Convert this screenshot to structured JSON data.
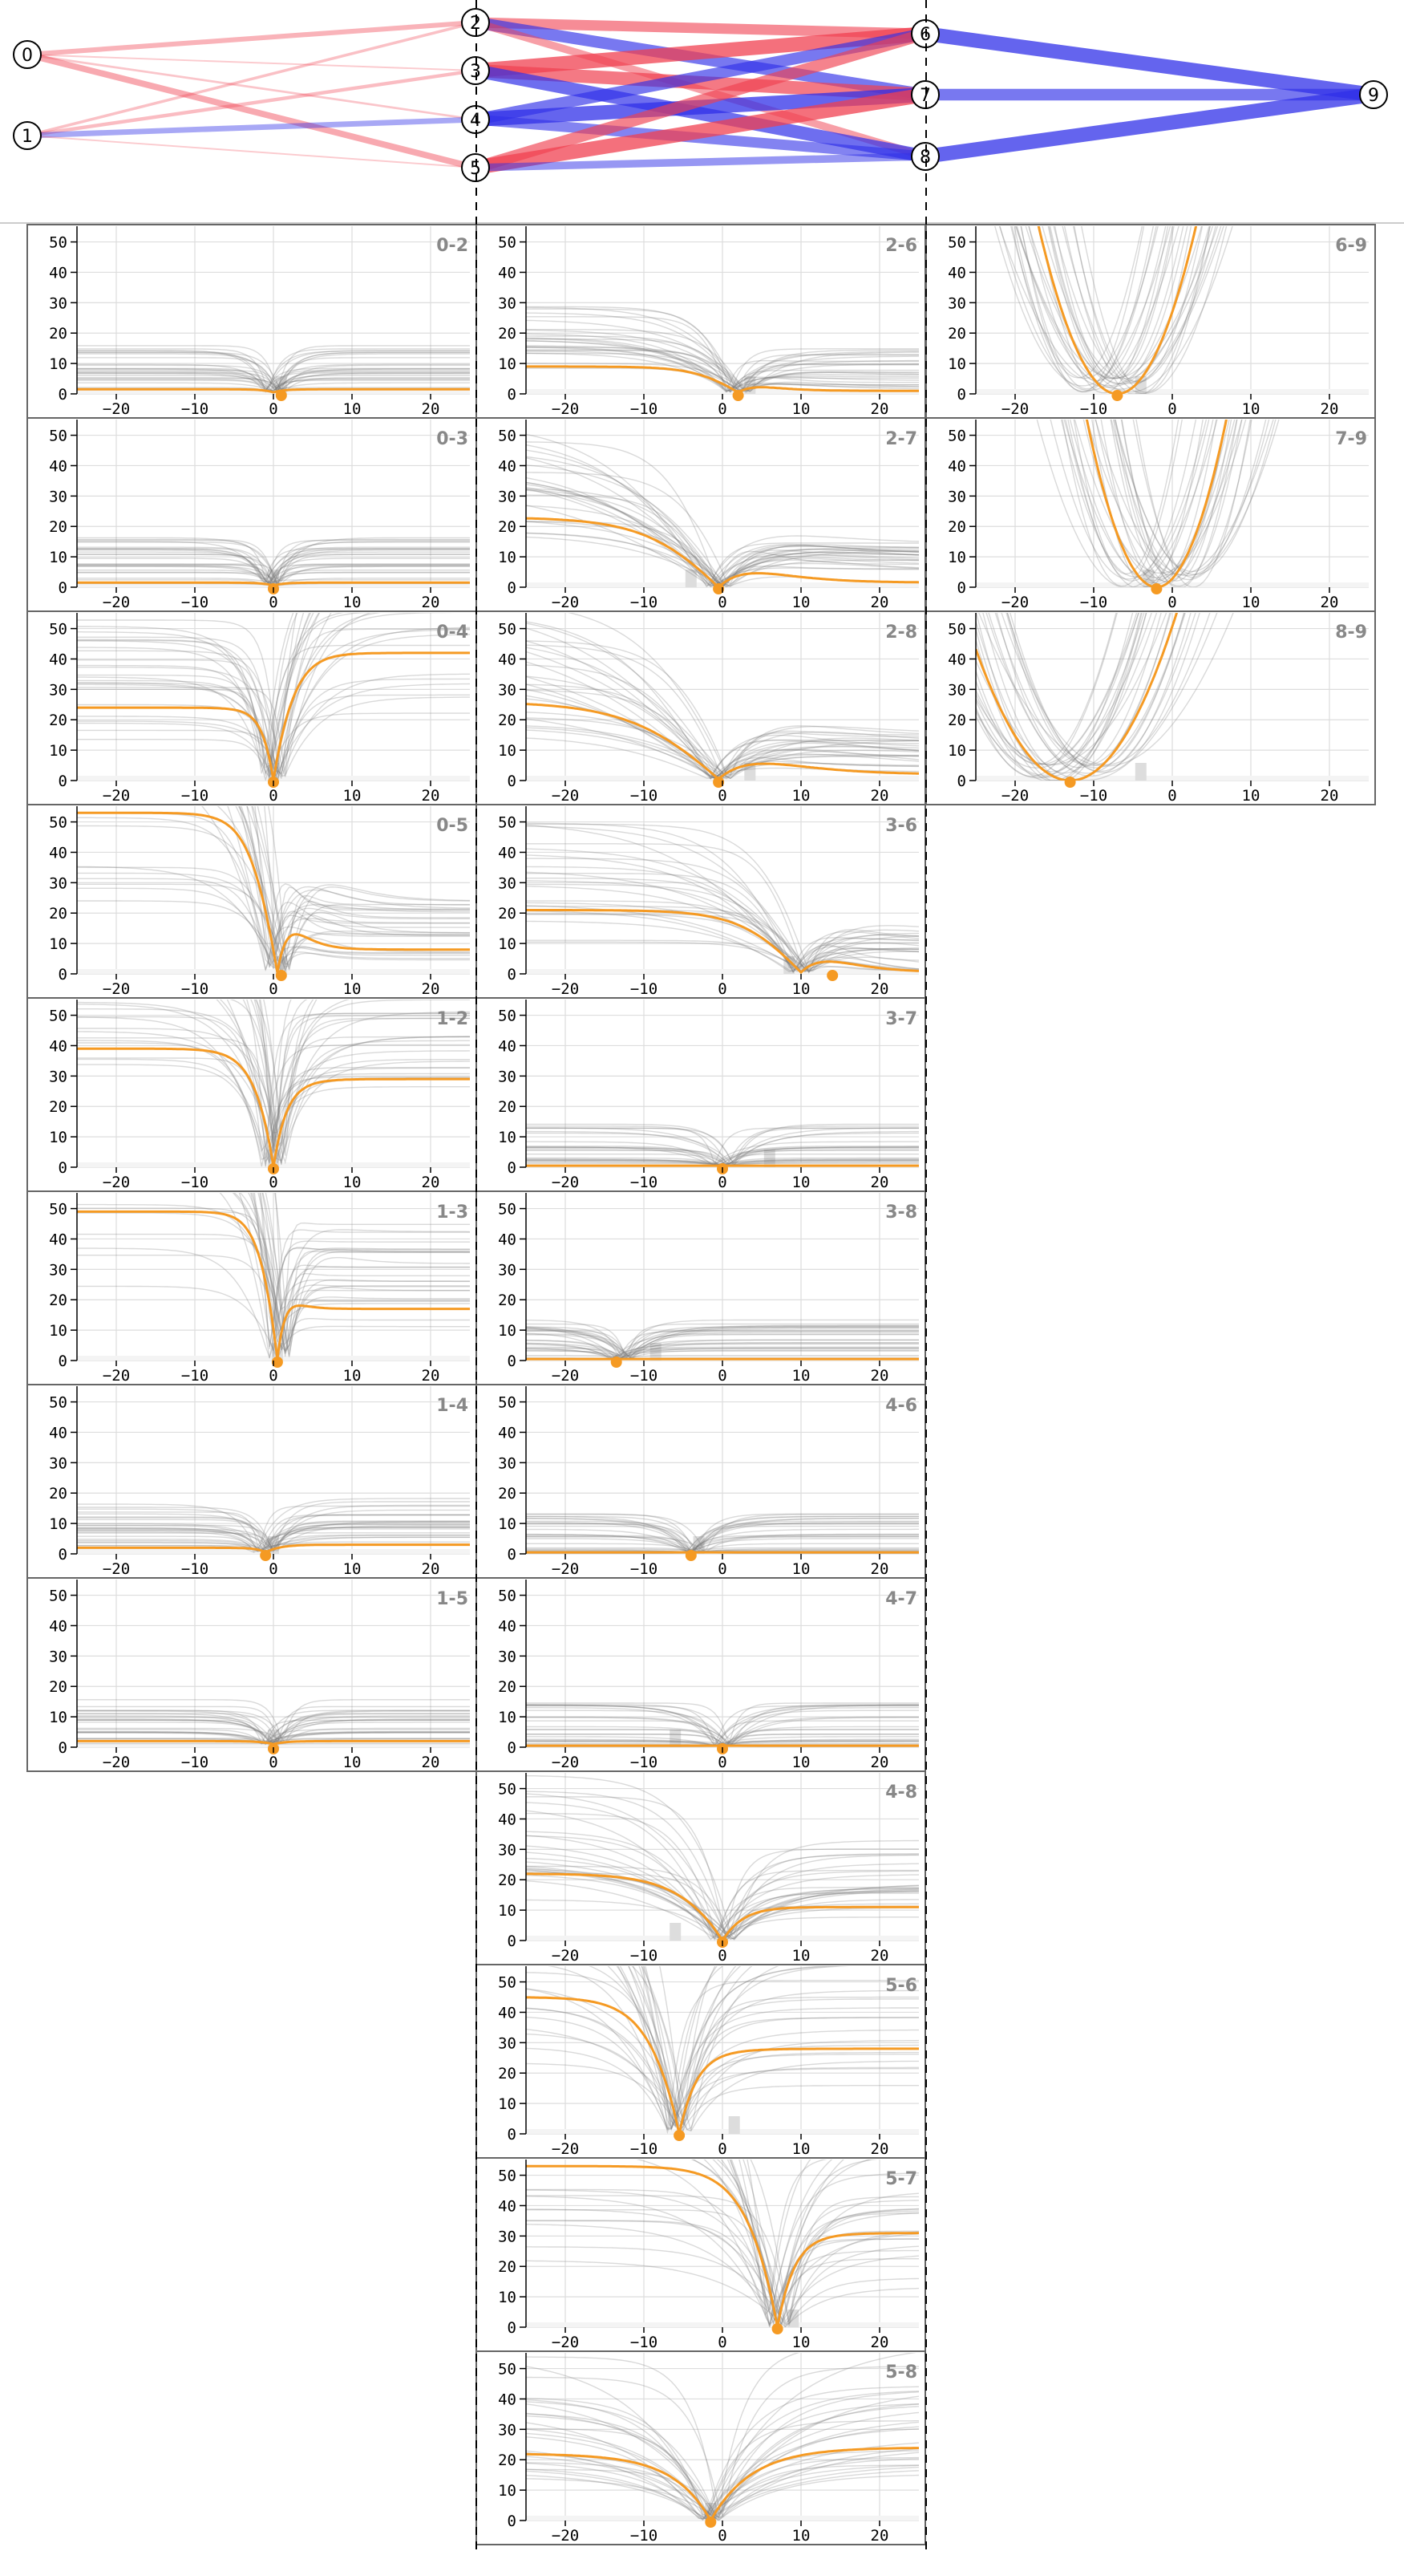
{
  "network": {
    "nodes": [
      {
        "id": "0",
        "label": "0",
        "layer": 0
      },
      {
        "id": "1",
        "label": "1",
        "layer": 0
      },
      {
        "id": "2",
        "label": "2",
        "layer": 1
      },
      {
        "id": "3",
        "label": "3",
        "layer": 1
      },
      {
        "id": "4",
        "label": "4",
        "layer": 1
      },
      {
        "id": "5",
        "label": "5",
        "layer": 1
      },
      {
        "id": "6",
        "label": "6",
        "layer": 2
      },
      {
        "id": "7",
        "label": "7",
        "layer": 2
      },
      {
        "id": "8",
        "label": "8",
        "layer": 2
      },
      {
        "id": "9",
        "label": "9",
        "layer": 3
      }
    ],
    "edges": [
      {
        "from": "0",
        "to": "2",
        "weight": 0.3
      },
      {
        "from": "0",
        "to": "3",
        "weight": 0.05
      },
      {
        "from": "0",
        "to": "4",
        "weight": 0.1
      },
      {
        "from": "0",
        "to": "5",
        "weight": 0.4
      },
      {
        "from": "1",
        "to": "2",
        "weight": 0.15
      },
      {
        "from": "1",
        "to": "3",
        "weight": 0.2
      },
      {
        "from": "1",
        "to": "4",
        "weight": -0.35
      },
      {
        "from": "1",
        "to": "5",
        "weight": 0.05
      },
      {
        "from": "2",
        "to": "6",
        "weight": 0.7
      },
      {
        "from": "2",
        "to": "7",
        "weight": -0.8
      },
      {
        "from": "2",
        "to": "8",
        "weight": 0.5
      },
      {
        "from": "3",
        "to": "6",
        "weight": 1.0
      },
      {
        "from": "3",
        "to": "7",
        "weight": 0.9
      },
      {
        "from": "3",
        "to": "8",
        "weight": -0.9
      },
      {
        "from": "4",
        "to": "6",
        "weight": -0.8
      },
      {
        "from": "4",
        "to": "7",
        "weight": -1.0
      },
      {
        "from": "4",
        "to": "8",
        "weight": -0.7
      },
      {
        "from": "5",
        "to": "6",
        "weight": 0.8
      },
      {
        "from": "5",
        "to": "7",
        "weight": 1.0
      },
      {
        "from": "5",
        "to": "8",
        "weight": -0.5
      },
      {
        "from": "6",
        "to": "9",
        "weight": -1.0
      },
      {
        "from": "7",
        "to": "9",
        "weight": -0.8
      },
      {
        "from": "8",
        "to": "9",
        "weight": -1.0
      }
    ],
    "colors": {
      "positive": "#f04050",
      "negative": "#3030e8",
      "node_fill": "#ffffff",
      "node_stroke": "#000000"
    }
  },
  "chart_data": {
    "type": "line",
    "description_free": true,
    "xlim": [
      -25,
      25
    ],
    "ylim": [
      0,
      52
    ],
    "xticks": [
      -20,
      -10,
      0,
      10,
      20
    ],
    "yticks": [
      0,
      10,
      20,
      30,
      40,
      50
    ],
    "grid": true,
    "colors": {
      "highlight": "#f59a23",
      "samples": "#777777",
      "band": "#dddddd",
      "axes_bg": "#f4f4f4"
    },
    "panels": [
      {
        "label": "0-2",
        "col": 0,
        "row": 0,
        "kind": "dip",
        "center": 0,
        "base_left": 1.5,
        "base_right": 1.5,
        "min": 0.5,
        "width": 1.2,
        "marker_x": 1,
        "band_x": 1,
        "spread": "mid"
      },
      {
        "label": "0-3",
        "col": 0,
        "row": 1,
        "kind": "dip",
        "center": 0,
        "base_left": 1.5,
        "base_right": 1.5,
        "min": 0.5,
        "width": 1.2,
        "marker_x": 0,
        "band_x": 0,
        "spread": "mid"
      },
      {
        "label": "0-4",
        "col": 0,
        "row": 2,
        "kind": "dip",
        "center": 0,
        "base_left": 24,
        "base_right": 42,
        "min": 0,
        "width": 2,
        "marker_x": 0,
        "band_x": 0,
        "spread": "mid"
      },
      {
        "label": "0-5",
        "col": 0,
        "row": 3,
        "kind": "dip",
        "center": 0.5,
        "base_left": 53,
        "base_right": 8,
        "min": 0.5,
        "width": 2,
        "marker_x": 1,
        "band_x": 1,
        "spread": "mid"
      },
      {
        "label": "1-2",
        "col": 0,
        "row": 4,
        "kind": "dip",
        "center": 0,
        "base_left": 39,
        "base_right": 29,
        "min": 0,
        "width": 2,
        "marker_x": 0,
        "band_x": 0,
        "spread": "mid"
      },
      {
        "label": "1-3",
        "col": 0,
        "row": 5,
        "kind": "dip",
        "center": 0.5,
        "base_left": 49,
        "base_right": 17,
        "min": 0.5,
        "width": 1.5,
        "marker_x": 0.5,
        "band_x": 0.5,
        "spread": "mid"
      },
      {
        "label": "1-4",
        "col": 0,
        "row": 6,
        "kind": "dip",
        "center": -1,
        "base_left": 2,
        "base_right": 3,
        "min": 0.5,
        "width": 1.5,
        "marker_x": -1,
        "band_x": 0,
        "spread": "mid"
      },
      {
        "label": "1-5",
        "col": 0,
        "row": 7,
        "kind": "dip",
        "center": 0,
        "base_left": 2,
        "base_right": 2,
        "min": 1,
        "width": 1.5,
        "marker_x": 0,
        "band_x": 0,
        "spread": "mid"
      },
      {
        "label": "2-6",
        "col": 1,
        "row": 0,
        "kind": "dip",
        "center": 2,
        "base_left": 9,
        "base_right": 1,
        "min": 0.5,
        "width": 3,
        "marker_x": 2,
        "band_x": 3.5,
        "spread": "mid"
      },
      {
        "label": "2-7",
        "col": 1,
        "row": 1,
        "kind": "dip",
        "center": -0.5,
        "base_left": 23,
        "base_right": 1.5,
        "min": 0,
        "width": 5,
        "marker_x": -0.5,
        "band_x": -4,
        "spread": "mid"
      },
      {
        "label": "2-8",
        "col": 1,
        "row": 2,
        "kind": "dip",
        "center": -0.5,
        "base_left": 26,
        "base_right": 2,
        "min": 0.5,
        "width": 6,
        "marker_x": -0.5,
        "band_x": 3.5,
        "spread": "mid"
      },
      {
        "label": "3-6",
        "col": 1,
        "row": 3,
        "kind": "dip",
        "center": 10,
        "base_left": 21,
        "base_right": 0.5,
        "min": 0.5,
        "width": 4,
        "marker_x": 14,
        "band_x": 8.5,
        "spread": "mid"
      },
      {
        "label": "3-7",
        "col": 1,
        "row": 4,
        "kind": "dip",
        "center": 0,
        "base_left": 0.5,
        "base_right": 0.5,
        "min": 0.5,
        "width": 2,
        "marker_x": 0,
        "band_x": 6,
        "spread": "mid"
      },
      {
        "label": "3-8",
        "col": 1,
        "row": 5,
        "kind": "dip",
        "center": -13,
        "base_left": 0.5,
        "base_right": 0.5,
        "min": 0.5,
        "width": 2,
        "marker_x": -13.5,
        "band_x": -8.5,
        "spread": "low"
      },
      {
        "label": "4-6",
        "col": 1,
        "row": 6,
        "kind": "dip",
        "center": -3.5,
        "base_left": 0.5,
        "base_right": 0.5,
        "min": 0.5,
        "width": 2,
        "marker_x": -4,
        "band_x": -3,
        "spread": "mid"
      },
      {
        "label": "4-7",
        "col": 1,
        "row": 7,
        "kind": "dip",
        "center": 0,
        "base_left": 0.5,
        "base_right": 0.5,
        "min": 0.5,
        "width": 2,
        "marker_x": 0,
        "band_x": -6,
        "spread": "mid"
      },
      {
        "label": "4-8",
        "col": 1,
        "row": 8,
        "kind": "dip",
        "center": 0,
        "base_left": 22,
        "base_right": 11,
        "min": 0,
        "width": 4,
        "marker_x": 0,
        "band_x": -6,
        "spread": "mid"
      },
      {
        "label": "5-6",
        "col": 1,
        "row": 9,
        "kind": "dip",
        "center": -5.5,
        "base_left": 45,
        "base_right": 28,
        "min": 0,
        "width": 3,
        "marker_x": -5.5,
        "band_x": 1.5,
        "spread": "high"
      },
      {
        "label": "5-7",
        "col": 1,
        "row": 10,
        "kind": "dip",
        "center": 7,
        "base_left": 53,
        "base_right": 31,
        "min": 0,
        "width": 3,
        "marker_x": 7,
        "band_x": 9,
        "spread": "high"
      },
      {
        "label": "5-8",
        "col": 1,
        "row": 11,
        "kind": "dip",
        "center": -1.5,
        "base_left": 22,
        "base_right": 24,
        "min": 0,
        "width": 5,
        "marker_x": -1.5,
        "band_x": -1.5,
        "spread": "mid"
      },
      {
        "label": "6-9",
        "col": 2,
        "row": 0,
        "kind": "parabola",
        "center": -7,
        "min": 0,
        "curv": 0.55,
        "marker_x": -7,
        "band_x": -4,
        "spread": "high"
      },
      {
        "label": "7-9",
        "col": 2,
        "row": 1,
        "kind": "parabola",
        "center": -2,
        "min": 0,
        "curv": 0.7,
        "marker_x": -2,
        "band_x": -3,
        "spread": "high"
      },
      {
        "label": "8-9",
        "col": 2,
        "row": 2,
        "kind": "parabola",
        "center": -13,
        "min": 0,
        "curv": 0.3,
        "marker_x": -13,
        "band_x": -4,
        "spread": "high"
      }
    ]
  }
}
